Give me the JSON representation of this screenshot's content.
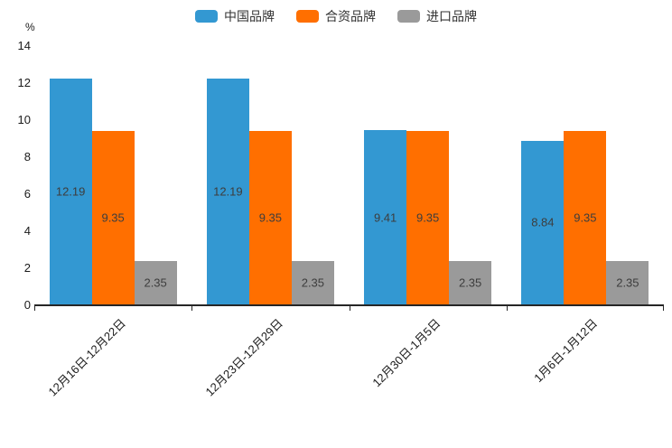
{
  "chart_data": {
    "type": "bar",
    "title": "",
    "unit_label": "%",
    "categories": [
      "12月16日-12月22日",
      "12月23日-12月29日",
      "12月30日-1月5日",
      "1月6日-1月12日"
    ],
    "series": [
      {
        "name": "中国品牌",
        "color": "#3398d2",
        "values": [
          12.19,
          12.19,
          9.41,
          8.84
        ]
      },
      {
        "name": "合资品牌",
        "color": "#ff6f00",
        "values": [
          9.35,
          9.35,
          9.35,
          9.35
        ]
      },
      {
        "name": "进口品牌",
        "color": "#9a9a9a",
        "values": [
          2.35,
          2.35,
          2.35,
          2.35
        ]
      }
    ],
    "y_axis": {
      "ticks": [
        0,
        2,
        4,
        6,
        8,
        10,
        12,
        14
      ],
      "min": 0,
      "max": 14
    },
    "legend": {
      "position": "top",
      "entries": [
        "中国品牌",
        "合资品牌",
        "进口品牌"
      ]
    },
    "grid": false,
    "value_labels": "inside-center",
    "colors": {
      "axis": "#262626",
      "bar_label_text": "#3d3d3d",
      "tick_text": "#1a1a1a"
    }
  }
}
